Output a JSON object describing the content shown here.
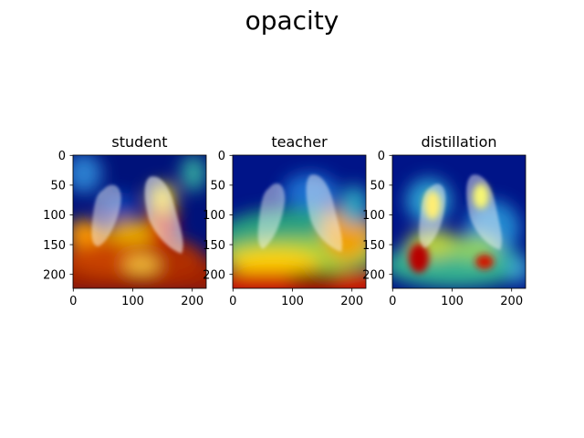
{
  "figure": {
    "suptitle": "opacity"
  },
  "chart_data": [
    {
      "type": "heatmap",
      "title": "student",
      "xlim": [
        0,
        224
      ],
      "ylim": [
        224,
        0
      ],
      "xticks": [
        0,
        100,
        200
      ],
      "yticks": [
        0,
        50,
        100,
        150,
        200
      ],
      "colormap": "jet",
      "overlay": "lung x-ray"
    },
    {
      "type": "heatmap",
      "title": "teacher",
      "xlim": [
        0,
        224
      ],
      "ylim": [
        224,
        0
      ],
      "xticks": [
        0,
        100,
        200
      ],
      "yticks": [
        0,
        50,
        100,
        150,
        200
      ],
      "colormap": "jet",
      "overlay": "lung x-ray"
    },
    {
      "type": "heatmap",
      "title": "distillation",
      "xlim": [
        0,
        224
      ],
      "ylim": [
        224,
        0
      ],
      "xticks": [
        0,
        100,
        200
      ],
      "yticks": [
        0,
        50,
        100,
        150,
        200
      ],
      "colormap": "jet",
      "overlay": "lung x-ray"
    }
  ]
}
